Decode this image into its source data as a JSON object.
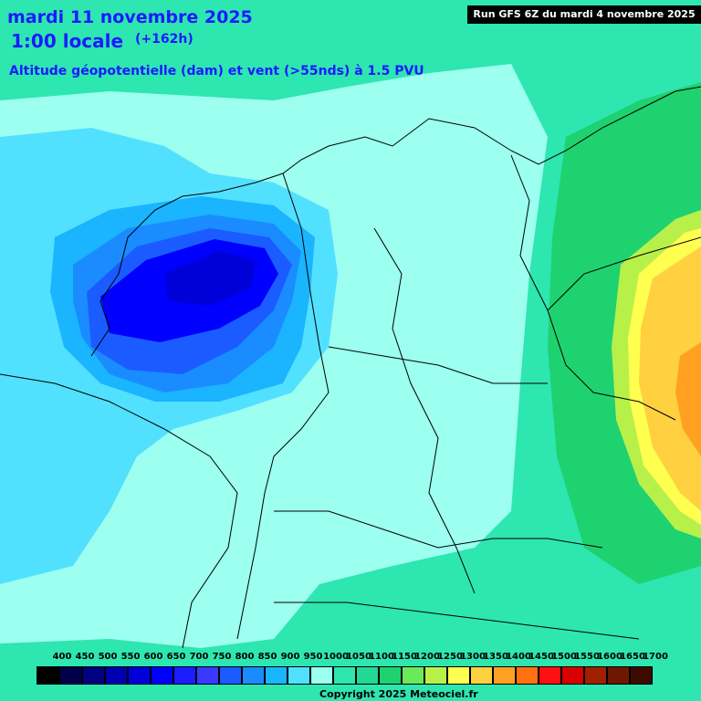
{
  "header": {
    "date_line": "mardi 11 novembre 2025",
    "time_line": "1:00 locale",
    "lead_time": "(+162h)",
    "parameter": "Altitude géopotentielle (dam) et vent (>55nds) à 1.5 PVU",
    "run_info": "Run GFS 6Z du mardi 4 novembre 2025"
  },
  "legend": {
    "levels": [
      "400",
      "450",
      "500",
      "550",
      "600",
      "650",
      "700",
      "750",
      "800",
      "850",
      "900",
      "950",
      "1000",
      "1050",
      "1100",
      "1150",
      "1200",
      "1250",
      "1300",
      "1350",
      "1400",
      "1450",
      "1500",
      "1550",
      "1600",
      "1650",
      "1700"
    ],
    "colors": [
      "#000000",
      "#00004a",
      "#000080",
      "#0000b0",
      "#0000d8",
      "#0000ff",
      "#1c1cff",
      "#3a3aff",
      "#1a5cff",
      "#1a8cff",
      "#1ab4ff",
      "#52e0ff",
      "#9cfff0",
      "#2ee6b0",
      "#23d894",
      "#1ed270",
      "#6aea5a",
      "#b8f04a",
      "#ffff50",
      "#ffd040",
      "#ffa020",
      "#ff7010",
      "#ff1010",
      "#d80000",
      "#a02000",
      "#6e1800",
      "#3c0c00"
    ]
  },
  "copyright": "Copyright 2025 Meteociel.fr"
}
